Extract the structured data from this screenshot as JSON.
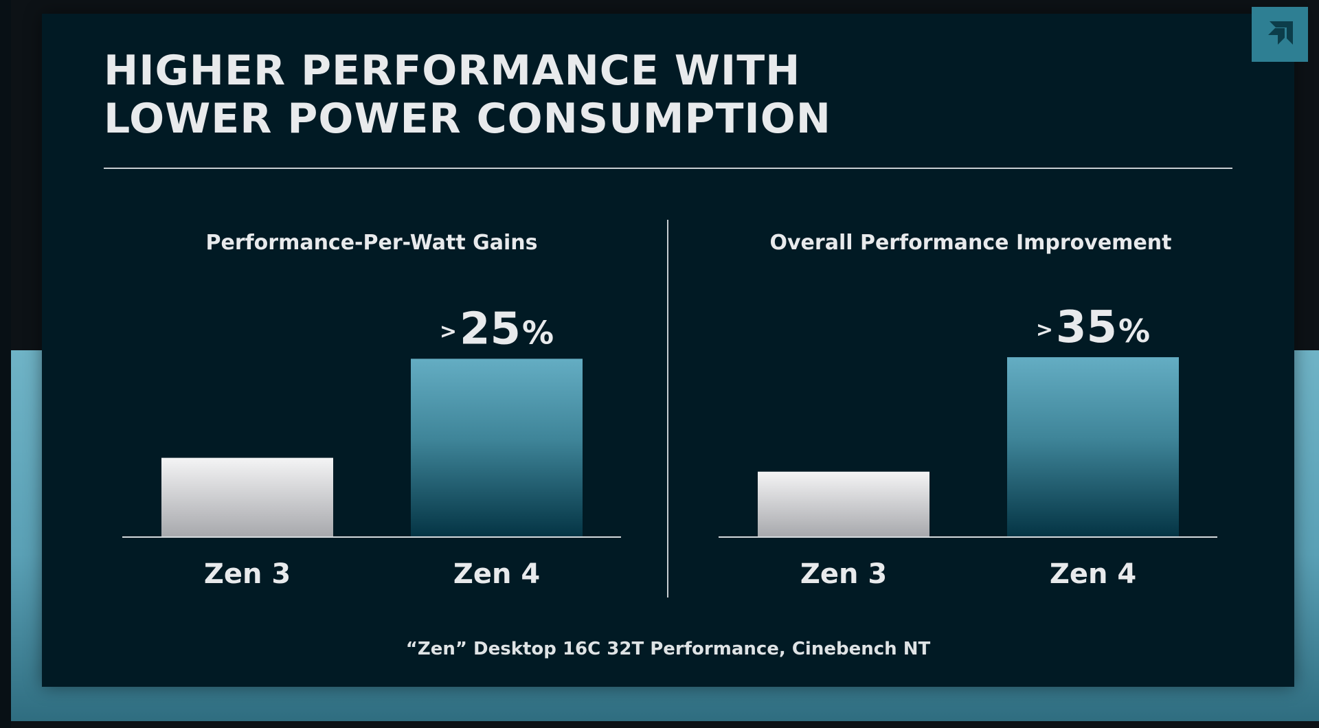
{
  "title_lines": [
    "HIGHER PERFORMANCE WITH",
    "LOWER POWER CONSUMPTION"
  ],
  "footnote": "“Zen” Desktop 16C 32T Performance, Cinebench NT",
  "icons": {
    "logo": "amd-logo-icon"
  },
  "colors": {
    "slide_background": "#011a24",
    "zen3_bar_top": "#f4f4f5",
    "zen3_bar_bottom": "#a7a8ac",
    "zen4_bar_top": "#64adc3",
    "zen4_bar_bottom": "#043444",
    "text": "#e8eaec",
    "accent": "#5aa0b5"
  },
  "chart_data": [
    {
      "type": "bar",
      "title": "Performance-Per-Watt Gains",
      "categories": [
        "Zen 3",
        "Zen 4"
      ],
      "values": [
        1.0,
        2.25
      ],
      "ylim": [
        0,
        2.6
      ],
      "grid": false,
      "annotations": [
        {
          "category": "Zen 4",
          "prefix": ">",
          "text": "25",
          "suffix": "%"
        }
      ]
    },
    {
      "type": "bar",
      "title": "Overall Performance Improvement",
      "categories": [
        "Zen 3",
        "Zen 4"
      ],
      "values": [
        1.0,
        2.75
      ],
      "ylim": [
        0,
        3.15
      ],
      "grid": false,
      "annotations": [
        {
          "category": "Zen 4",
          "prefix": ">",
          "text": "35",
          "suffix": "%"
        }
      ]
    }
  ]
}
